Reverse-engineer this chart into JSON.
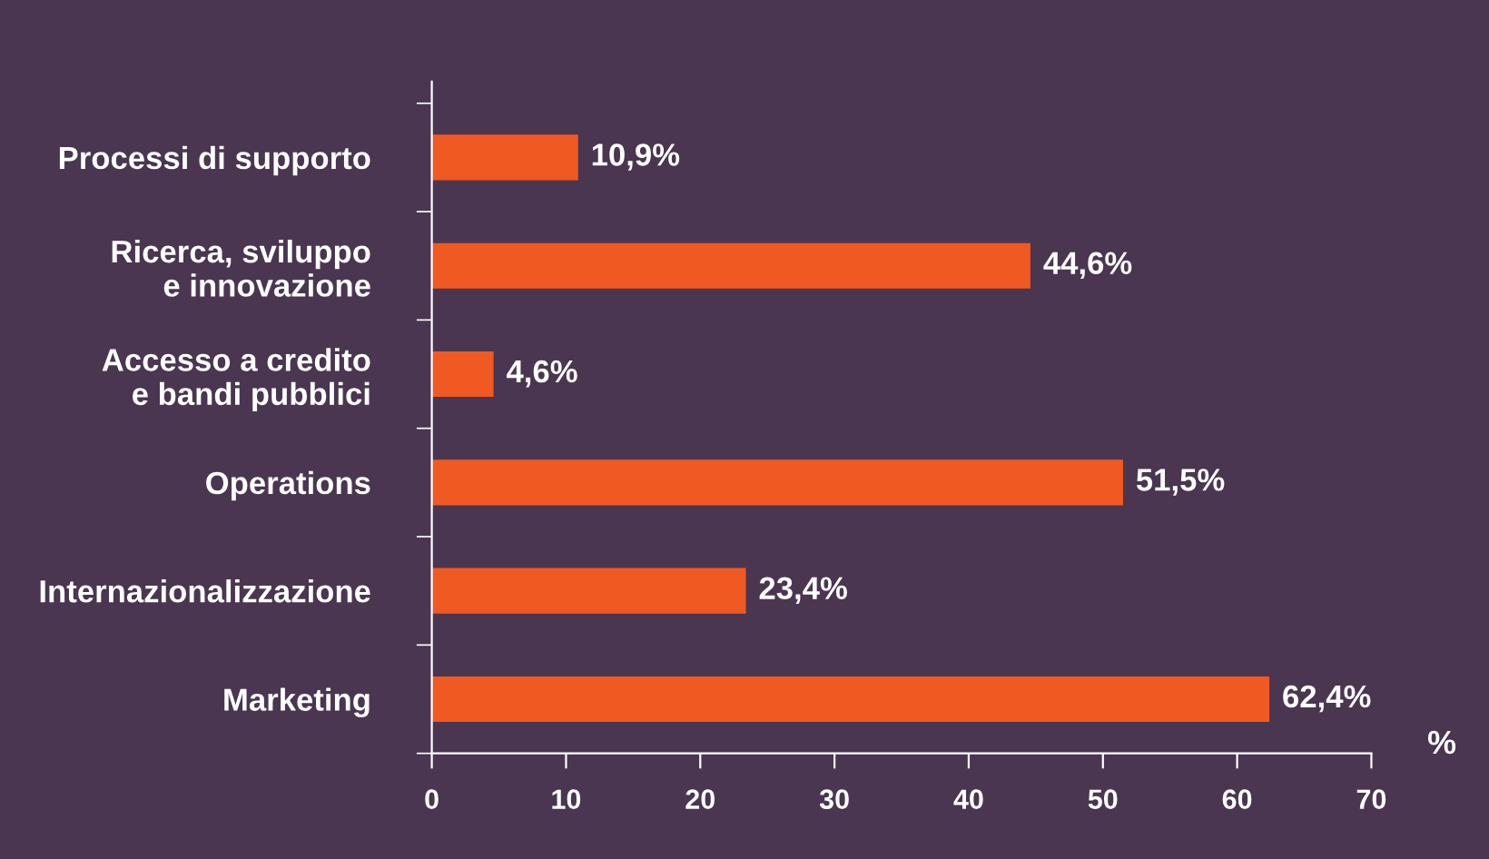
{
  "chart_data": {
    "type": "bar",
    "orientation": "horizontal",
    "xlabel": "%",
    "categories": [
      "Processi di supporto",
      "Ricerca, sviluppo\ne innovazione",
      "Accesso a credito\ne bandi pubblici",
      "Operations",
      "Internazionalizzazione",
      "Marketing"
    ],
    "values": [
      10.9,
      44.6,
      4.6,
      51.5,
      23.4,
      62.4
    ],
    "value_labels": [
      "10,9%",
      "44,6%",
      "4,6%",
      "51,5%",
      "23,4%",
      "62,4%"
    ],
    "color": "#f05a22",
    "xlim": [
      0,
      70
    ],
    "xticks": [
      0,
      10,
      20,
      30,
      40,
      50,
      60,
      70
    ],
    "grid": false
  }
}
